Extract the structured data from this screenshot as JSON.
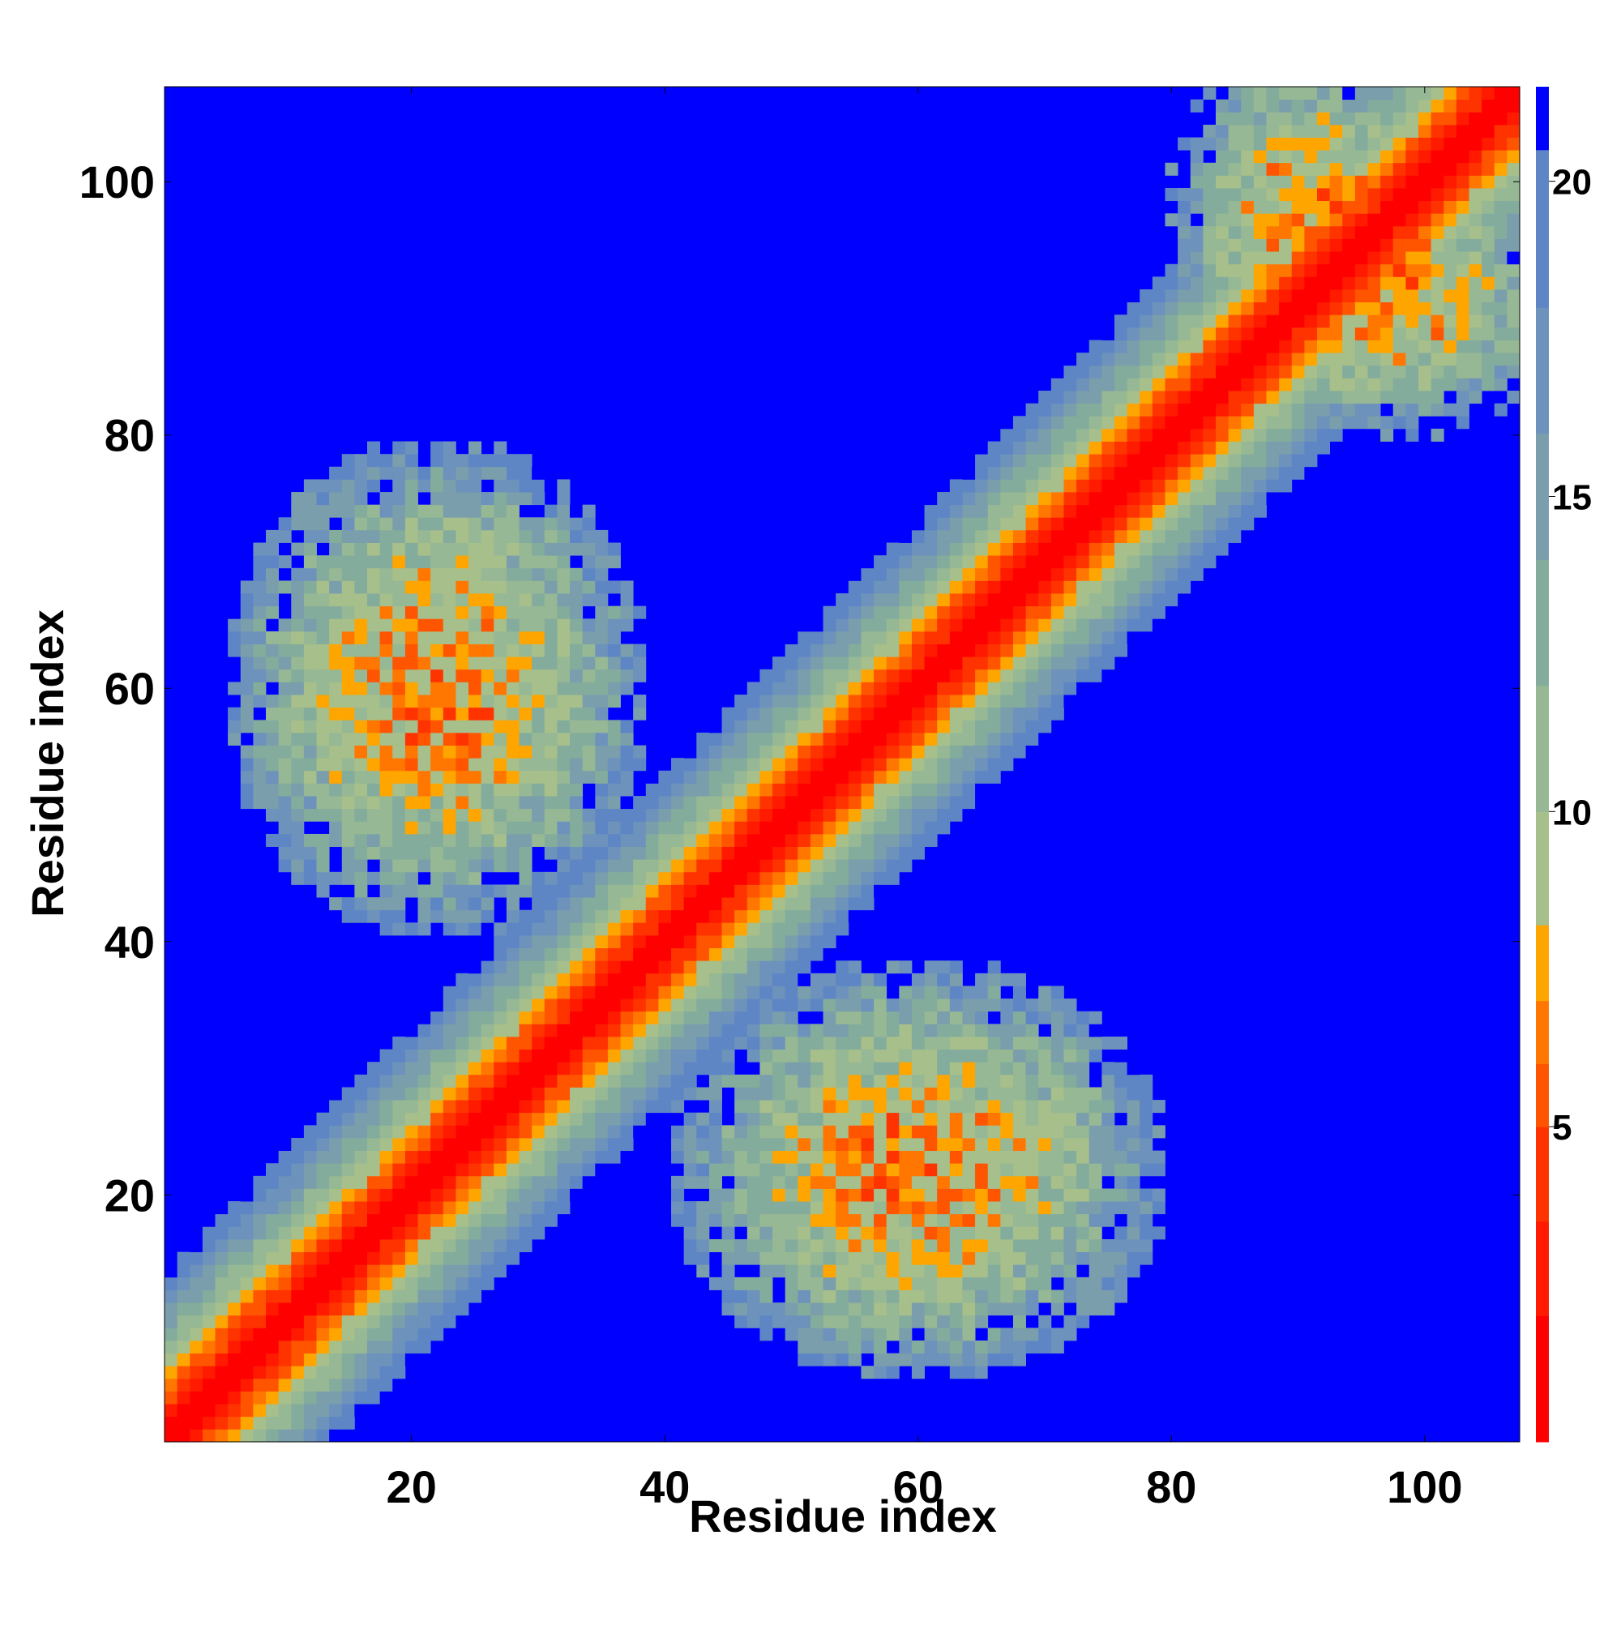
{
  "chart_data": {
    "type": "heatmap",
    "title": "",
    "xlabel": "Residue index",
    "ylabel": "Residue index",
    "x_ticks": [
      20,
      40,
      60,
      80,
      100
    ],
    "y_ticks": [
      20,
      40,
      60,
      80,
      100
    ],
    "xlim": [
      0.5,
      107.5
    ],
    "ylim": [
      0.5,
      107.5
    ],
    "n_residues": 107,
    "colorbar": {
      "ticks": [
        5,
        10,
        15,
        20
      ],
      "range": [
        0,
        21.5
      ],
      "levels": [
        {
          "min": 0,
          "max": 2,
          "color": "#ff0000"
        },
        {
          "min": 2,
          "max": 3.5,
          "color": "#ff1a00"
        },
        {
          "min": 3.5,
          "max": 5,
          "color": "#ff3300"
        },
        {
          "min": 5,
          "max": 6,
          "color": "#ff5500"
        },
        {
          "min": 6,
          "max": 7,
          "color": "#ff7700"
        },
        {
          "min": 7,
          "max": 8.2,
          "color": "#ffa500"
        },
        {
          "min": 8.2,
          "max": 10,
          "color": "#a7bf8a"
        },
        {
          "min": 10,
          "max": 12,
          "color": "#96b894"
        },
        {
          "min": 12,
          "max": 14,
          "color": "#84ac9c"
        },
        {
          "min": 14,
          "max": 16,
          "color": "#7a9eac"
        },
        {
          "min": 16,
          "max": 18,
          "color": "#6d92bb"
        },
        {
          "min": 18,
          "max": 20.5,
          "color": "#5e86c5"
        },
        {
          "min": 20.5,
          "max": 21.5,
          "color": "#0000ff"
        }
      ]
    },
    "description_of_values": "Pairwise residue distance map: near-zero along the diagonal, rising away from it; off-diagonal contact patches near (5-38, 45-80), (40-78, 2-38) and (82-107, 78-107); background beyond cutoff.",
    "cutoff": 21.5
  }
}
